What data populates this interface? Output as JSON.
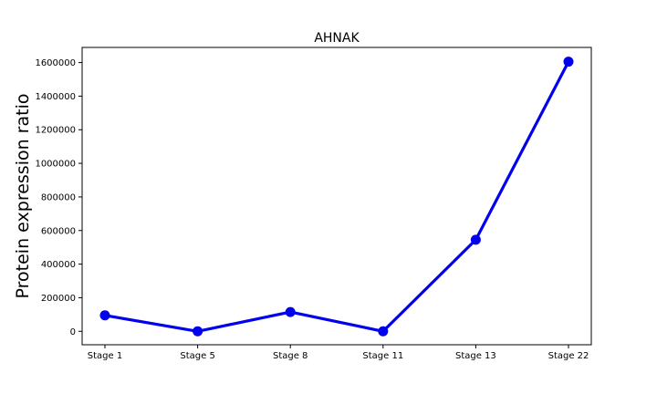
{
  "chart_data": {
    "type": "line",
    "title": "AHNAK",
    "xlabel": "",
    "ylabel": "Protein expression ratio",
    "categories": [
      "Stage 1",
      "Stage 5",
      "Stage 8",
      "Stage 11",
      "Stage 13",
      "Stage 22"
    ],
    "series": [
      {
        "values": [
          95000,
          0,
          115000,
          0,
          545000,
          1605000
        ],
        "color": "#0000ee"
      }
    ],
    "ylim": [
      -80000,
      1690000
    ],
    "yticks": [
      0,
      200000,
      400000,
      600000,
      800000,
      1000000,
      1200000,
      1400000,
      1600000
    ],
    "ytick_labels": [
      "0",
      "200000",
      "400000",
      "600000",
      "800000",
      "1000000",
      "1200000",
      "1400000",
      "1600000"
    ],
    "grid": false,
    "legend": "none",
    "markers": "circle"
  }
}
